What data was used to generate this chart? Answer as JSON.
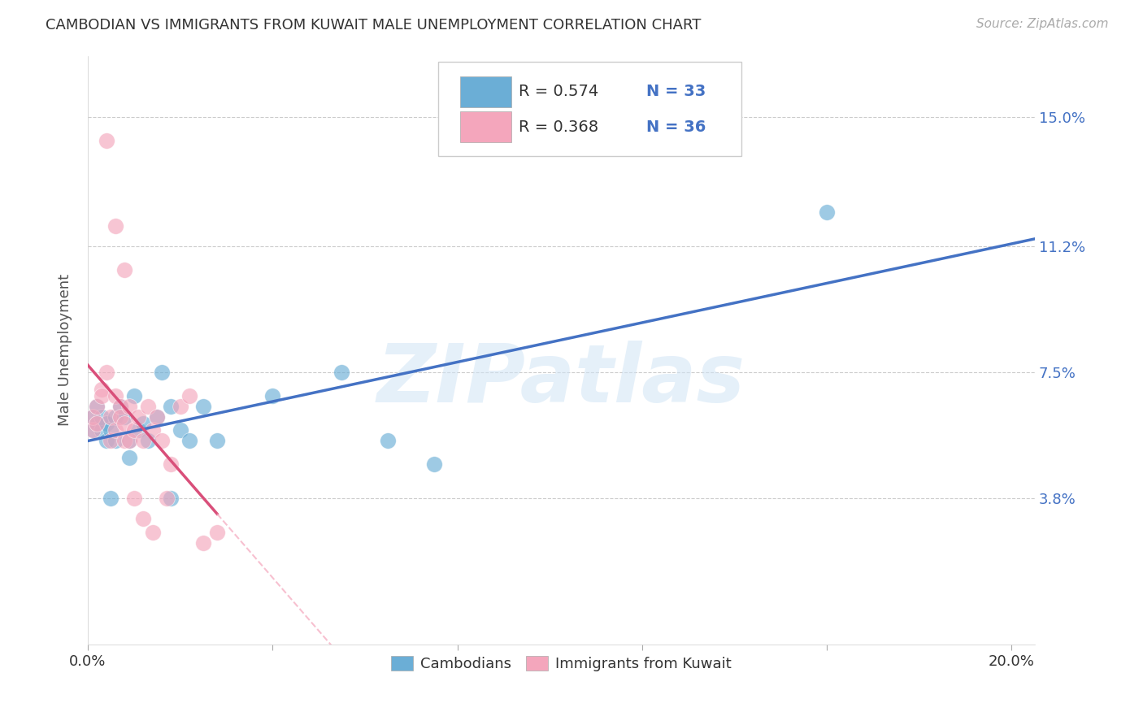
{
  "title": "CAMBODIAN VS IMMIGRANTS FROM KUWAIT MALE UNEMPLOYMENT CORRELATION CHART",
  "source": "Source: ZipAtlas.com",
  "ylabel": "Male Unemployment",
  "xlim": [
    0.0,
    0.205
  ],
  "ylim": [
    -0.005,
    0.168
  ],
  "xticks": [
    0.0,
    0.04,
    0.08,
    0.12,
    0.16,
    0.2
  ],
  "xticklabels": [
    "0.0%",
    "",
    "",
    "",
    "",
    "20.0%"
  ],
  "ytick_positions": [
    0.038,
    0.075,
    0.112,
    0.15
  ],
  "ytick_labels": [
    "3.8%",
    "7.5%",
    "11.2%",
    "15.0%"
  ],
  "background_color": "#ffffff",
  "watermark": "ZIPatlas",
  "legend_r1": "R = 0.574",
  "legend_n1": "N = 33",
  "legend_r2": "R = 0.368",
  "legend_n2": "N = 36",
  "blue_color": "#6baed6",
  "pink_color": "#f4a6bc",
  "blue_line_color": "#4472C4",
  "pink_line_color": "#d94f7a",
  "pink_dash_color": "#f4a6bc",
  "cam_x": [
    0.001,
    0.001,
    0.002,
    0.002,
    0.003,
    0.003,
    0.004,
    0.004,
    0.005,
    0.005,
    0.006,
    0.006,
    0.007,
    0.008,
    0.009,
    0.009,
    0.01,
    0.011,
    0.012,
    0.013,
    0.015,
    0.016,
    0.018,
    0.02,
    0.022,
    0.025,
    0.028,
    0.04,
    0.055,
    0.065,
    0.075,
    0.16,
    0.018
  ],
  "cam_y": [
    0.058,
    0.062,
    0.065,
    0.06,
    0.058,
    0.062,
    0.06,
    0.055,
    0.058,
    0.038,
    0.062,
    0.055,
    0.065,
    0.062,
    0.055,
    0.05,
    0.068,
    0.058,
    0.06,
    0.055,
    0.062,
    0.075,
    0.065,
    0.058,
    0.055,
    0.065,
    0.055,
    0.068,
    0.075,
    0.055,
    0.048,
    0.122,
    0.038
  ],
  "kuw_x": [
    0.001,
    0.001,
    0.002,
    0.002,
    0.003,
    0.003,
    0.004,
    0.005,
    0.005,
    0.006,
    0.006,
    0.007,
    0.007,
    0.008,
    0.008,
    0.009,
    0.009,
    0.01,
    0.011,
    0.012,
    0.013,
    0.014,
    0.015,
    0.016,
    0.017,
    0.018,
    0.02,
    0.022,
    0.025,
    0.028,
    0.004,
    0.006,
    0.008,
    0.01,
    0.012,
    0.014
  ],
  "kuw_y": [
    0.058,
    0.062,
    0.065,
    0.06,
    0.07,
    0.068,
    0.075,
    0.062,
    0.055,
    0.068,
    0.058,
    0.065,
    0.062,
    0.055,
    0.06,
    0.065,
    0.055,
    0.058,
    0.062,
    0.055,
    0.065,
    0.058,
    0.062,
    0.055,
    0.038,
    0.048,
    0.065,
    0.068,
    0.025,
    0.028,
    0.143,
    0.118,
    0.105,
    0.038,
    0.032,
    0.028
  ]
}
